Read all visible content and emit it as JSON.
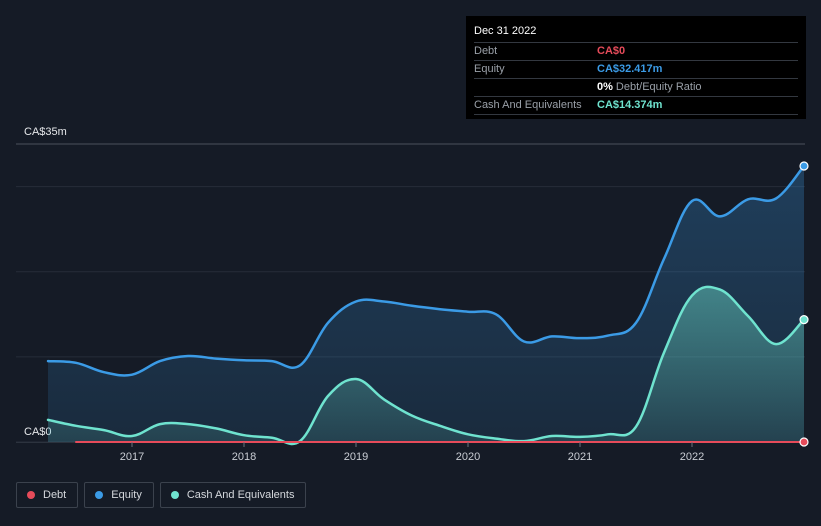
{
  "tooltip": {
    "date": "Dec 31 2022",
    "rows": [
      {
        "label": "Debt",
        "value": "CA$0",
        "color": "#e64b5a"
      },
      {
        "label": "Equity",
        "value": "CA$32.417m",
        "color": "#3b9be6"
      },
      {
        "ratio_pct": "0%",
        "ratio_label": "Debt/Equity Ratio"
      },
      {
        "label": "Cash And Equivalents",
        "value": "CA$14.374m",
        "color": "#6fe3cf"
      }
    ]
  },
  "legend": [
    {
      "label": "Debt",
      "color": "#e64b5a"
    },
    {
      "label": "Equity",
      "color": "#3b9be6"
    },
    {
      "label": "Cash And Equivalents",
      "color": "#6fe3cf"
    }
  ],
  "chart_data": {
    "type": "area",
    "y_top_label": "CA$35m",
    "y_bottom_label": "CA$0",
    "ylim": [
      0,
      35
    ],
    "xlim": [
      2016.25,
      2023.0
    ],
    "x_ticks": [
      {
        "value": 2017,
        "label": "2017"
      },
      {
        "value": 2018,
        "label": "2018"
      },
      {
        "value": 2019,
        "label": "2019"
      },
      {
        "value": 2020,
        "label": "2020"
      },
      {
        "value": 2021,
        "label": "2021"
      },
      {
        "value": 2022,
        "label": "2022"
      }
    ],
    "gridlines": [
      0,
      10,
      20,
      30,
      35
    ],
    "series": [
      {
        "name": "Equity",
        "color": "#3b9be6",
        "x": [
          2016.25,
          2016.5,
          2016.75,
          2017.0,
          2017.25,
          2017.5,
          2017.75,
          2018.0,
          2018.25,
          2018.5,
          2018.75,
          2019.0,
          2019.25,
          2019.5,
          2019.75,
          2020.0,
          2020.25,
          2020.5,
          2020.75,
          2021.0,
          2021.25,
          2021.5,
          2021.75,
          2022.0,
          2022.25,
          2022.5,
          2022.75,
          2023.0
        ],
        "values": [
          9.5,
          9.3,
          8.2,
          7.9,
          9.5,
          10.1,
          9.8,
          9.6,
          9.5,
          9.0,
          14.0,
          16.5,
          16.5,
          16.0,
          15.6,
          15.3,
          15.0,
          11.8,
          12.4,
          12.2,
          12.5,
          14.0,
          21.5,
          28.3,
          26.5,
          28.5,
          28.6,
          32.417
        ]
      },
      {
        "name": "Cash And Equivalents",
        "color": "#6fe3cf",
        "x": [
          2016.25,
          2016.5,
          2016.75,
          2017.0,
          2017.25,
          2017.5,
          2017.75,
          2018.0,
          2018.25,
          2018.5,
          2018.75,
          2019.0,
          2019.25,
          2019.5,
          2019.75,
          2020.0,
          2020.25,
          2020.5,
          2020.75,
          2021.0,
          2021.25,
          2021.5,
          2021.75,
          2022.0,
          2022.25,
          2022.5,
          2022.75,
          2023.0
        ],
        "values": [
          2.6,
          1.9,
          1.4,
          0.7,
          2.1,
          2.1,
          1.6,
          0.8,
          0.5,
          0.1,
          5.4,
          7.4,
          5.0,
          3.1,
          1.9,
          0.9,
          0.4,
          0.1,
          0.7,
          0.6,
          0.9,
          1.8,
          10.5,
          17.2,
          17.9,
          14.8,
          11.5,
          14.374
        ]
      },
      {
        "name": "Debt",
        "color": "#e64b5a",
        "x": [
          2016.5,
          2023.0
        ],
        "values": [
          0,
          0
        ]
      }
    ]
  }
}
